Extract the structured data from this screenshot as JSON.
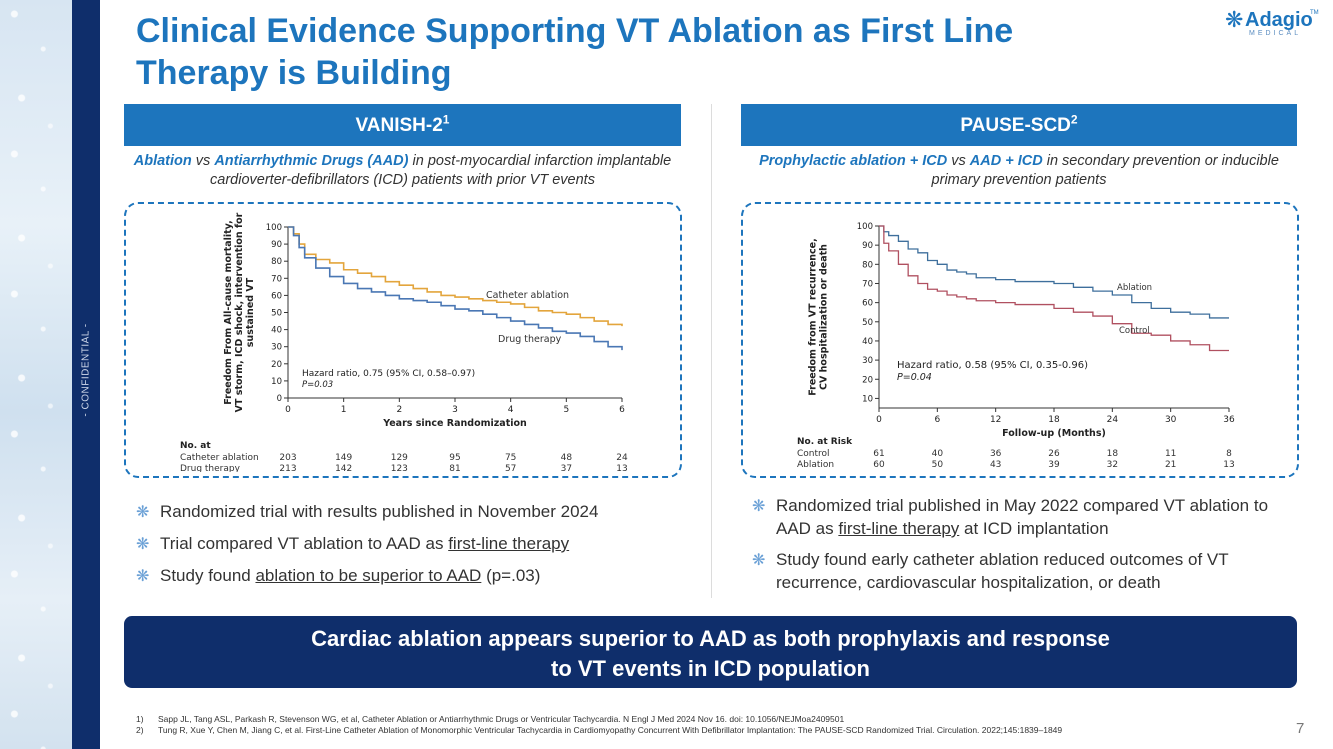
{
  "sidebar": {
    "confidential": "- CONFIDENTIAL -"
  },
  "title": {
    "line1": "Clinical Evidence Supporting VT Ablation as First Line",
    "line2": "Therapy is Building"
  },
  "logo": {
    "word": "Adagio",
    "sub": "MEDICAL",
    "tm": "TM"
  },
  "colors": {
    "primary": "#1d75bd",
    "navy": "#0f2e6b",
    "ablation_line": "#e3a53c",
    "drug_line": "#4a77b4",
    "pause_ablation": "#3e6f9c",
    "pause_control": "#b05060"
  },
  "left": {
    "header": "VANISH-2",
    "header_sup": "1",
    "subtitle_em1": "Ablation",
    "subtitle_vs": " vs ",
    "subtitle_em2": "Antiarrhythmic Drugs (AAD)",
    "subtitle_rest": " in post-myocardial infarction implantable cardioverter-defibrillators (ICD) patients with prior VT events",
    "bullets": [
      {
        "pre": "Randomized trial with results published in November 2024",
        "u": "",
        "post": ""
      },
      {
        "pre": "Trial compared VT ablation to AAD as ",
        "u": "first-line therapy",
        "post": ""
      },
      {
        "pre": "Study found ",
        "u": "ablation to be superior to AAD",
        "post": " (p=.03)"
      }
    ]
  },
  "right": {
    "header": "PAUSE-SCD",
    "header_sup": "2",
    "subtitle_em1": "Prophylactic ablation + ICD",
    "subtitle_vs": " vs ",
    "subtitle_em2": "AAD + ICD",
    "subtitle_rest": " in secondary prevention or inducible primary prevention patients",
    "bullets": [
      {
        "pre": "Randomized trial published in May 2022 compared VT ablation to AAD as ",
        "u": "first-line therapy",
        "post": " at ICD implantation"
      },
      {
        "pre": "Study found early catheter ablation reduced outcomes of VT recurrence, cardiovascular hospitalization, or death",
        "u": "",
        "post": ""
      }
    ]
  },
  "banner": {
    "line1": "Cardiac ablation appears superior to AAD as both prophylaxis and response",
    "line2": "to VT events in ICD population"
  },
  "refs": [
    {
      "n": "1)",
      "text": "Sapp JL, Tang ASL, Parkash R, Stevenson WG, et al, Catheter Ablation or Antiarrhythmic Drugs or Ventricular Tachycardia. N Engl J Med 2024 Nov 16. doi: 10.1056/NEJMoa2409501"
    },
    {
      "n": "2)",
      "text": "Tung R, Xue Y, Chen M, Jiang C, et al. First-Line Catheter Ablation of Monomorphic Ventricular Tachycardia in Cardiomyopathy Concurrent With Defibrillator Implantation: The PAUSE-SCD Randomized Trial. Circulation. 2022;145:1839–1849"
    }
  ],
  "page_number": "7",
  "chart_data": [
    {
      "type": "line",
      "name": "vanish2",
      "ylabel_lines": [
        "Freedom From All-cause mortality,",
        "VT storm, ICD shock, intervention for",
        "sustained VT"
      ],
      "xlabel": "Years since Randomization",
      "xlim": [
        0,
        6
      ],
      "ylim": [
        0,
        100
      ],
      "xticks": [
        0,
        1,
        2,
        3,
        4,
        5,
        6
      ],
      "yticks": [
        0,
        10,
        20,
        30,
        40,
        50,
        60,
        70,
        80,
        90,
        100
      ],
      "series": [
        {
          "name": "Catheter ablation",
          "color": "#e3a53c",
          "x": [
            0,
            0.1,
            0.2,
            0.3,
            0.5,
            0.75,
            1,
            1.25,
            1.5,
            1.75,
            2,
            2.25,
            2.5,
            2.75,
            3,
            3.25,
            3.5,
            3.75,
            4,
            4.25,
            4.5,
            4.75,
            5,
            5.25,
            5.5,
            5.75,
            6
          ],
          "y": [
            100,
            96,
            90,
            84,
            81,
            79,
            75,
            73,
            71,
            68,
            66,
            64,
            62,
            60,
            59,
            58,
            57,
            56,
            55,
            53,
            51,
            50,
            49,
            47,
            45,
            43,
            42
          ]
        },
        {
          "name": "Drug therapy",
          "color": "#4a77b4",
          "x": [
            0,
            0.1,
            0.2,
            0.3,
            0.5,
            0.75,
            1,
            1.25,
            1.5,
            1.75,
            2,
            2.25,
            2.5,
            2.75,
            3,
            3.25,
            3.5,
            3.75,
            4,
            4.25,
            4.5,
            4.75,
            5,
            5.25,
            5.5,
            5.75,
            6
          ],
          "y": [
            100,
            95,
            88,
            82,
            76,
            71,
            67,
            64,
            62,
            60,
            58,
            57,
            56,
            54,
            52,
            51,
            49,
            47,
            45,
            43,
            41,
            39,
            38,
            36,
            33,
            30,
            28
          ]
        }
      ],
      "annotation": {
        "line1": "Hazard ratio, 0.75 (95% CI, 0.58–0.97)",
        "line2": "P=0.03"
      },
      "risk_table": {
        "title": "No. at",
        "rows": [
          {
            "label": "Catheter ablation",
            "values": [
              "203",
              "149",
              "129",
              "95",
              "75",
              "48",
              "24"
            ]
          },
          {
            "label": "Drug therapy",
            "values": [
              "213",
              "142",
              "123",
              "81",
              "57",
              "37",
              "13"
            ]
          }
        ]
      }
    },
    {
      "type": "line",
      "name": "pause-scd",
      "ylabel_lines": [
        "Freedom from VT recurrence,",
        "CV hospitalization or death"
      ],
      "xlabel": "Follow-up (Months)",
      "xlim": [
        0,
        36
      ],
      "ylim": [
        5,
        100
      ],
      "xticks": [
        0,
        6,
        12,
        18,
        24,
        30,
        36
      ],
      "yticks": [
        10,
        20,
        30,
        40,
        50,
        60,
        70,
        80,
        90,
        100
      ],
      "series": [
        {
          "name": "Ablation",
          "color": "#3e6f9c",
          "x": [
            0,
            0.5,
            1,
            2,
            3,
            4,
            5,
            6,
            7,
            8,
            9,
            10,
            12,
            14,
            16,
            18,
            20,
            22,
            24,
            26,
            28,
            30,
            32,
            34,
            36
          ],
          "y": [
            100,
            97,
            95,
            92,
            88,
            86,
            82,
            80,
            77,
            76,
            75,
            73,
            72,
            71,
            71,
            70,
            68,
            66,
            64,
            60,
            57,
            55,
            54,
            52,
            52
          ]
        },
        {
          "name": "Control",
          "color": "#b05060",
          "x": [
            0,
            0.5,
            1,
            2,
            3,
            4,
            5,
            6,
            7,
            8,
            9,
            10,
            12,
            14,
            16,
            18,
            20,
            22,
            24,
            26,
            28,
            30,
            32,
            34,
            36
          ],
          "y": [
            100,
            91,
            87,
            80,
            74,
            70,
            67,
            66,
            64,
            63,
            62,
            61,
            60,
            59,
            59,
            57,
            55,
            53,
            49,
            44,
            43,
            40,
            38,
            35,
            35
          ]
        }
      ],
      "series_labels": [
        "Ablation",
        "Control"
      ],
      "annotation": {
        "line1": "Hazard ratio, 0.58 (95% CI, 0.35-0.96)",
        "line2": "P=0.04"
      },
      "risk_table": {
        "title": "No. at Risk",
        "rows": [
          {
            "label": "Control",
            "values": [
              "61",
              "40",
              "36",
              "26",
              "18",
              "11",
              "8"
            ]
          },
          {
            "label": "Ablation",
            "values": [
              "60",
              "50",
              "43",
              "39",
              "32",
              "21",
              "13"
            ]
          }
        ]
      }
    }
  ]
}
